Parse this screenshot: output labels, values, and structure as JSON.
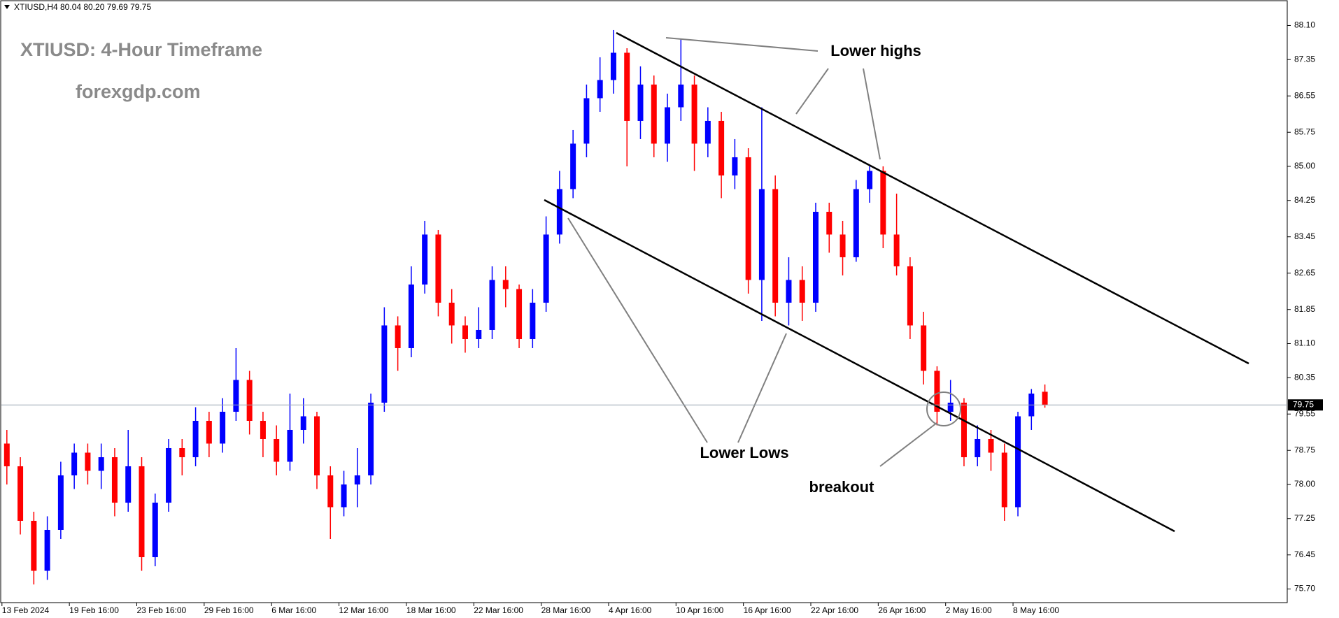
{
  "chart_data": {
    "type": "candlestick",
    "header_text": "XTIUSD,H4  80.04 80.20 79.69 79.75",
    "title": "XTIUSD: 4-Hour Timeframe",
    "subtitle": "forexgdp.com",
    "annotations": {
      "lower_highs": "Lower highs",
      "lower_lows": "Lower Lows",
      "breakout": "breakout"
    },
    "up_color": "#0000ff",
    "down_color": "#ff0000",
    "categories": [
      "13 Feb 2024",
      null,
      null,
      null,
      null,
      "19 Feb 16:00",
      null,
      null,
      null,
      null,
      "23 Feb 16:00",
      null,
      null,
      null,
      null,
      "29 Feb 16:00",
      null,
      null,
      null,
      null,
      "6 Mar 16:00",
      null,
      null,
      null,
      null,
      "12 Mar 16:00",
      null,
      null,
      null,
      null,
      "18 Mar 16:00",
      null,
      null,
      null,
      null,
      "22 Mar 16:00",
      null,
      null,
      null,
      null,
      "28 Mar 16:00",
      null,
      null,
      null,
      null,
      "4 Apr 16:00",
      null,
      null,
      null,
      null,
      "10 Apr 16:00",
      null,
      null,
      null,
      null,
      "16 Apr 16:00",
      null,
      null,
      null,
      null,
      "22 Apr 16:00",
      null,
      null,
      null,
      null,
      "26 Apr 16:00",
      null,
      null,
      null,
      null,
      "2 May 16:00",
      null,
      null,
      null,
      null,
      "8 May 16:00",
      null,
      null
    ],
    "open": [
      78.9,
      78.4,
      77.2,
      76.1,
      77.0,
      78.2,
      78.7,
      78.3,
      78.6,
      77.6,
      78.4,
      76.4,
      77.6,
      78.8,
      78.6,
      79.4,
      78.9,
      79.6,
      80.3,
      79.4,
      79.0,
      78.5,
      79.2,
      79.5,
      78.2,
      77.5,
      78.0,
      78.2,
      79.8,
      81.5,
      81.0,
      82.4,
      83.5,
      82.0,
      81.5,
      81.2,
      81.4,
      82.5,
      82.3,
      81.2,
      82.0,
      83.5,
      84.5,
      85.5,
      86.5,
      86.9,
      87.5,
      86.0,
      86.8,
      85.5,
      86.3,
      86.8,
      85.5,
      86.0,
      84.8,
      85.2,
      82.5,
      84.5,
      82.0,
      82.5,
      82.0,
      84.0,
      83.5,
      83.0,
      84.5,
      84.9,
      83.5,
      82.8,
      81.5,
      80.5,
      79.6,
      79.8,
      78.6,
      79.0,
      78.7,
      77.5,
      79.5,
      80.04
    ],
    "high": [
      79.2,
      78.6,
      77.4,
      77.3,
      78.5,
      78.9,
      78.9,
      78.9,
      78.8,
      79.2,
      78.6,
      77.8,
      79.0,
      79.0,
      79.7,
      79.6,
      79.9,
      81.0,
      80.5,
      79.6,
      79.3,
      80.0,
      79.9,
      79.6,
      78.4,
      78.3,
      78.8,
      80.0,
      81.9,
      81.7,
      82.8,
      83.8,
      83.6,
      82.3,
      81.7,
      81.9,
      82.8,
      82.8,
      82.4,
      82.3,
      83.9,
      84.9,
      85.8,
      86.8,
      87.4,
      88.0,
      87.6,
      87.2,
      87.0,
      86.6,
      87.8,
      87.0,
      86.3,
      86.2,
      85.6,
      85.4,
      86.3,
      84.8,
      83.0,
      82.8,
      84.2,
      84.2,
      83.8,
      84.7,
      85.0,
      85.0,
      84.4,
      83.0,
      81.8,
      80.6,
      80.3,
      79.9,
      79.3,
      79.2,
      78.9,
      79.6,
      80.1,
      80.2
    ],
    "low": [
      78.0,
      76.9,
      75.8,
      75.9,
      76.8,
      77.9,
      78.0,
      77.9,
      77.3,
      77.4,
      76.1,
      76.2,
      77.4,
      78.2,
      78.4,
      78.6,
      78.7,
      79.4,
      79.1,
      78.6,
      78.2,
      78.3,
      78.9,
      77.9,
      76.8,
      77.3,
      77.5,
      78.0,
      79.6,
      80.5,
      80.8,
      82.2,
      81.7,
      81.1,
      80.9,
      81.0,
      81.2,
      81.9,
      81.0,
      81.0,
      81.8,
      83.3,
      84.3,
      85.2,
      86.2,
      86.6,
      85.0,
      85.6,
      85.2,
      85.1,
      86.0,
      84.9,
      85.2,
      84.3,
      84.5,
      82.2,
      81.6,
      81.7,
      81.5,
      81.6,
      81.8,
      83.1,
      82.6,
      82.9,
      84.2,
      83.2,
      82.6,
      81.2,
      80.2,
      79.3,
      79.4,
      78.4,
      78.4,
      78.3,
      77.2,
      77.3,
      79.2,
      79.69
    ],
    "close": [
      78.4,
      77.2,
      76.1,
      77.0,
      78.2,
      78.7,
      78.3,
      78.6,
      77.6,
      78.4,
      76.4,
      77.6,
      78.8,
      78.6,
      79.4,
      78.9,
      79.6,
      80.3,
      79.4,
      79.0,
      78.5,
      79.2,
      79.5,
      78.2,
      77.5,
      78.0,
      78.2,
      79.8,
      81.5,
      81.0,
      82.4,
      83.5,
      82.0,
      81.5,
      81.2,
      81.4,
      82.5,
      82.3,
      81.2,
      82.0,
      83.5,
      84.5,
      85.5,
      86.5,
      86.9,
      87.5,
      86.0,
      86.8,
      85.5,
      86.3,
      86.8,
      85.5,
      86.0,
      84.8,
      85.2,
      82.5,
      84.5,
      82.0,
      82.5,
      82.0,
      84.0,
      83.5,
      83.0,
      84.5,
      84.9,
      83.5,
      82.8,
      81.5,
      80.5,
      79.6,
      79.8,
      78.6,
      79.0,
      78.7,
      77.5,
      79.5,
      80.0,
      79.75
    ],
    "ylim": [
      75.4,
      88.63
    ],
    "yticks": [
      {
        "value": 88.1,
        "label": "88.10"
      },
      87.35,
      86.55,
      85.75,
      {
        "value": 85,
        "label": "85.00"
      },
      84.25,
      83.45,
      82.65,
      81.85,
      {
        "value": 81.1,
        "label": "81.10"
      },
      80.35,
      79.55,
      78.75,
      {
        "value": 78,
        "label": "78.00"
      },
      77.25,
      76.45,
      {
        "value": 75.7,
        "label": "75.70"
      }
    ],
    "price_line": {
      "value": 79.75,
      "label": "79.75"
    }
  }
}
